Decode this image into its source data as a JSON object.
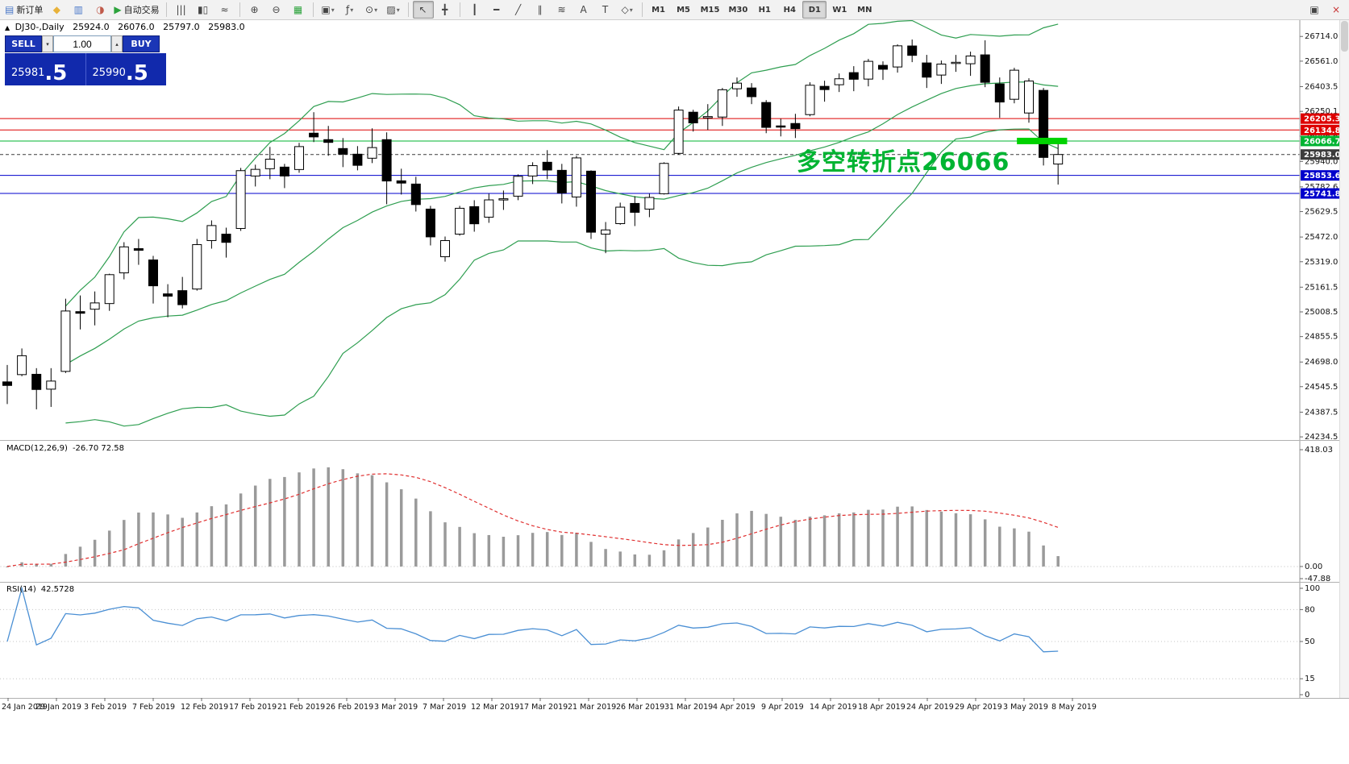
{
  "toolbar": {
    "dropdown_glyph": "▾",
    "items": [
      {
        "t": "btn",
        "name": "new-order-button",
        "glyph": "▤",
        "glyph_color": "#4a78c8",
        "label": "新订单"
      },
      {
        "t": "icon",
        "name": "mql5-community-icon",
        "glyph": "◆",
        "glyph_color": "#e8b23a"
      },
      {
        "t": "icon",
        "name": "market-depth-icon",
        "glyph": "▥",
        "glyph_color": "#4a78c8"
      },
      {
        "t": "icon",
        "name": "news-icon",
        "glyph": "◑",
        "glyph_color": "#c05a4a"
      },
      {
        "t": "btn",
        "name": "autotrading-button",
        "glyph": "▶",
        "glyph_color": "#2ca33c",
        "label": "自动交易"
      },
      {
        "t": "sep"
      },
      {
        "t": "icon",
        "name": "bar-chart-icon",
        "glyph": "|||"
      },
      {
        "t": "icon",
        "name": "candlestick-chart-icon",
        "glyph": "▮▯"
      },
      {
        "t": "icon",
        "name": "line-chart-icon",
        "glyph": "≈"
      },
      {
        "t": "sep"
      },
      {
        "t": "icon",
        "name": "zoom-in-icon",
        "glyph": "⊕"
      },
      {
        "t": "icon",
        "name": "zoom-out-icon",
        "glyph": "⊖"
      },
      {
        "t": "icon",
        "name": "strategy-tester-icon",
        "glyph": "▦",
        "glyph_color": "#2ca33c"
      },
      {
        "t": "sep"
      },
      {
        "t": "dd",
        "name": "new-window-menu",
        "glyph": "▣"
      },
      {
        "t": "dd",
        "name": "indicators-menu",
        "glyph": "ƒ"
      },
      {
        "t": "dd",
        "name": "period-menu",
        "glyph": "⊙"
      },
      {
        "t": "dd",
        "name": "template-menu",
        "glyph": "▨"
      },
      {
        "t": "sep"
      },
      {
        "t": "icon",
        "name": "cursor-tool",
        "glyph": "↖",
        "active": true
      },
      {
        "t": "icon",
        "name": "crosshair-tool",
        "glyph": "╋"
      },
      {
        "t": "sep"
      },
      {
        "t": "icon",
        "name": "vertical-line-tool",
        "glyph": "┃"
      },
      {
        "t": "icon",
        "name": "horizontal-line-tool",
        "glyph": "━"
      },
      {
        "t": "icon",
        "name": "trendline-tool",
        "glyph": "╱"
      },
      {
        "t": "icon",
        "name": "channel-tool",
        "glyph": "∥"
      },
      {
        "t": "icon",
        "name": "fibonacci-tool",
        "glyph": "≋"
      },
      {
        "t": "icon",
        "name": "text-tool",
        "glyph": "A"
      },
      {
        "t": "icon",
        "name": "label-tool",
        "glyph": "T"
      },
      {
        "t": "dd",
        "name": "arrows-tool",
        "glyph": "◇"
      },
      {
        "t": "sep"
      },
      {
        "t": "tf",
        "label": "M1"
      },
      {
        "t": "tf",
        "label": "M5"
      },
      {
        "t": "tf",
        "label": "M15"
      },
      {
        "t": "tf",
        "label": "M30"
      },
      {
        "t": "tf",
        "label": "H1"
      },
      {
        "t": "tf",
        "label": "H4"
      },
      {
        "t": "tf",
        "label": "D1",
        "active": true
      },
      {
        "t": "tf",
        "label": "W1"
      },
      {
        "t": "tf",
        "label": "MN"
      },
      {
        "t": "spacer"
      },
      {
        "t": "icon",
        "name": "dock-window-icon",
        "glyph": "▣"
      },
      {
        "t": "icon",
        "name": "close-icon",
        "glyph": "×",
        "glyph_color": "#c83232"
      }
    ]
  },
  "chart_header": {
    "collapse_icon": "▲",
    "symbol_period": "DJ30-,Daily",
    "open": "25924.0",
    "high": "26076.0",
    "low": "25797.0",
    "close": "25983.0"
  },
  "trade_panel": {
    "sell_label": "SELL",
    "buy_label": "BUY",
    "volume": "1.00",
    "vol_down_glyph": "▾",
    "vol_up_glyph": "▴",
    "sell_price_main": "25981",
    "sell_price_pips": ".5",
    "buy_price_main": "25990",
    "buy_price_pips": ".5",
    "panel_color": "#1129ac"
  },
  "annotation": {
    "text": "多空转折点26066",
    "color": "#00b432"
  },
  "chart_data": {
    "type": "candlestick+indicators",
    "symbol": "DJ30-",
    "timeframe": "Daily",
    "price_axis": {
      "view_max": 26800,
      "view_min": 24215,
      "labels": [
        26714.0,
        26561.0,
        26403.5,
        26250.1,
        26096.6,
        25940.0,
        25782.6,
        25629.5,
        25472.0,
        25319.0,
        25161.5,
        25008.5,
        24855.5,
        24698.0,
        24545.5,
        24387.5,
        24234.5
      ]
    },
    "levels": [
      {
        "name": "resistance-line-1",
        "price": 26205.3,
        "color": "#dd0000",
        "style": "solid"
      },
      {
        "name": "resistance-line-2",
        "price": 26134.8,
        "color": "#dd0000",
        "style": "solid"
      },
      {
        "name": "pivot-line",
        "price": 26066.7,
        "color": "#00b432",
        "style": "solid"
      },
      {
        "name": "bid-line",
        "price": 25983.0,
        "color": "#3c3c3c",
        "style": "dash"
      },
      {
        "name": "support-line-1",
        "price": 25853.6,
        "color": "#0000cc",
        "style": "solid"
      },
      {
        "name": "support-line-2",
        "price": 25741.8,
        "color": "#0000cc",
        "style": "solid"
      }
    ],
    "highlight": {
      "price": 26066.7,
      "from_bar": 69.4,
      "to_bar": 72.4,
      "thickness": 8,
      "color": "#00d200"
    },
    "bollinger": {
      "period": 20,
      "deviation": 2,
      "color": "#2e9e50"
    },
    "candles": [
      [
        24575,
        24680,
        24438,
        24553
      ],
      [
        24620,
        24782,
        24610,
        24737
      ],
      [
        24622,
        24660,
        24405,
        24528
      ],
      [
        24530,
        24660,
        24420,
        24580
      ],
      [
        24640,
        25090,
        24630,
        25014
      ],
      [
        25010,
        25110,
        24900,
        25000
      ],
      [
        25025,
        25135,
        24925,
        25064
      ],
      [
        25060,
        25245,
        25015,
        25239
      ],
      [
        25250,
        25440,
        25210,
        25411
      ],
      [
        25400,
        25460,
        25300,
        25390
      ],
      [
        25330,
        25355,
        25060,
        25170
      ],
      [
        25120,
        25180,
        24975,
        25106
      ],
      [
        25140,
        25225,
        25030,
        25053
      ],
      [
        25150,
        25460,
        25140,
        25425
      ],
      [
        25450,
        25575,
        25400,
        25543
      ],
      [
        25490,
        25530,
        25345,
        25439
      ],
      [
        25525,
        25900,
        25510,
        25883
      ],
      [
        25850,
        25920,
        25785,
        25891
      ],
      [
        25895,
        26030,
        25830,
        25954
      ],
      [
        25905,
        25925,
        25775,
        25850
      ],
      [
        25890,
        26055,
        25870,
        26032
      ],
      [
        26115,
        26245,
        26060,
        26092
      ],
      [
        26075,
        26160,
        25975,
        26058
      ],
      [
        26020,
        26085,
        25905,
        25985
      ],
      [
        25985,
        26035,
        25885,
        25916
      ],
      [
        25960,
        26145,
        25930,
        26026
      ],
      [
        26075,
        26120,
        25675,
        25819
      ],
      [
        25820,
        25895,
        25735,
        25806
      ],
      [
        25800,
        25845,
        25630,
        25673
      ],
      [
        25645,
        25665,
        25420,
        25473
      ],
      [
        25350,
        25475,
        25320,
        25450
      ],
      [
        25490,
        25665,
        25480,
        25650
      ],
      [
        25660,
        25700,
        25505,
        25554
      ],
      [
        25595,
        25740,
        25560,
        25702
      ],
      [
        25705,
        25760,
        25640,
        25709
      ],
      [
        25725,
        25860,
        25700,
        25848
      ],
      [
        25850,
        25935,
        25800,
        25914
      ],
      [
        25935,
        26010,
        25830,
        25887
      ],
      [
        25885,
        25925,
        25680,
        25745
      ],
      [
        25720,
        25975,
        25660,
        25962
      ],
      [
        25880,
        25885,
        25460,
        25502
      ],
      [
        25490,
        25565,
        25372,
        25516
      ],
      [
        25555,
        25685,
        25548,
        25657
      ],
      [
        25680,
        25725,
        25540,
        25625
      ],
      [
        25645,
        25740,
        25595,
        25717
      ],
      [
        25740,
        25935,
        25735,
        25928
      ],
      [
        25990,
        26280,
        25982,
        26258
      ],
      [
        26245,
        26260,
        26125,
        26179
      ],
      [
        26210,
        26295,
        26135,
        26218
      ],
      [
        26215,
        26395,
        26160,
        26384
      ],
      [
        26390,
        26460,
        26340,
        26425
      ],
      [
        26395,
        26425,
        26295,
        26341
      ],
      [
        26305,
        26320,
        26115,
        26151
      ],
      [
        26160,
        26205,
        26095,
        26157
      ],
      [
        26175,
        26235,
        26085,
        26143
      ],
      [
        26230,
        26430,
        26220,
        26412
      ],
      [
        26405,
        26440,
        26310,
        26385
      ],
      [
        26415,
        26485,
        26370,
        26452
      ],
      [
        26490,
        26530,
        26375,
        26449
      ],
      [
        26450,
        26575,
        26405,
        26560
      ],
      [
        26535,
        26560,
        26445,
        26511
      ],
      [
        26525,
        26665,
        26490,
        26656
      ],
      [
        26655,
        26695,
        26555,
        26597
      ],
      [
        26550,
        26600,
        26395,
        26462
      ],
      [
        26475,
        26565,
        26420,
        26543
      ],
      [
        26550,
        26600,
        26495,
        26554
      ],
      [
        26545,
        26620,
        26470,
        26593
      ],
      [
        26600,
        26690,
        26400,
        26430
      ],
      [
        26420,
        26460,
        26210,
        26308
      ],
      [
        26325,
        26520,
        26300,
        26505
      ],
      [
        26240,
        26455,
        26180,
        26438
      ],
      [
        26380,
        26395,
        25915,
        25965
      ],
      [
        25924,
        26076,
        25797,
        25983
      ]
    ],
    "date_labels": [
      "24 Jan 2019",
      "29 Jan 2019",
      "3 Feb 2019",
      "7 Feb 2019",
      "12 Feb 2019",
      "17 Feb 2019",
      "21 Feb 2019",
      "26 Feb 2019",
      "3 Mar 2019",
      "7 Mar 2019",
      "12 Mar 2019",
      "17 Mar 2019",
      "21 Mar 2019",
      "26 Mar 2019",
      "31 Mar 2019",
      "4 Apr 2019",
      "9 Apr 2019",
      "14 Apr 2019",
      "18 Apr 2019",
      "24 Apr 2019",
      "29 Apr 2019",
      "3 May 2019",
      "8 May 2019"
    ],
    "macd": {
      "label": "MACD(12,26,9)",
      "values_text": "-26.70 72.58",
      "axis_max": 418.03,
      "axis_min": -47.88,
      "axis_labels": [
        "418.03",
        "0.00",
        "-47.88"
      ],
      "hist_color": "#9a9a9a",
      "signal_color": "#e03030"
    },
    "rsi": {
      "label": "RSI(14)",
      "value_text": "42.5728",
      "levels": [
        80,
        50,
        15
      ],
      "axis_labels": [
        "100",
        "80",
        "50",
        "15",
        "0"
      ],
      "line_color": "#4a8fd4",
      "axis_max": 100,
      "axis_min": 0
    }
  }
}
